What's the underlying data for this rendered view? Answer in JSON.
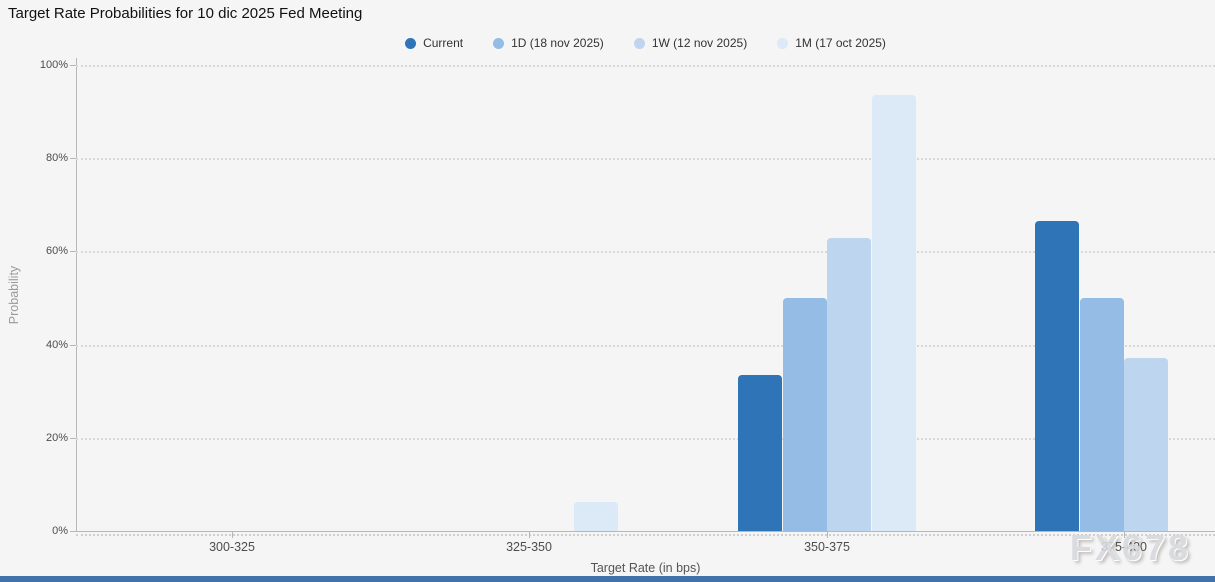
{
  "watermark": {
    "text": "FX678"
  },
  "page": {
    "background": "#f5f5f6",
    "grid_color": "#d9d9d9",
    "axis_color": "#b7b7b7",
    "footer_bar_color": "#4272aa"
  },
  "chart_data": {
    "type": "bar",
    "title": "Target Rate Probabilities for 10 dic 2025 Fed Meeting",
    "xlabel": "Target Rate (in bps)",
    "ylabel": "Probability",
    "categories": [
      "300-325",
      "325-350",
      "350-375",
      "375-400"
    ],
    "y_ticks": [
      "0%",
      "20%",
      "40%",
      "60%",
      "80%",
      "100%"
    ],
    "ylim": [
      0,
      100
    ],
    "grid": "horizontal-dotted",
    "legend_position": "top-center",
    "series": [
      {
        "name": "Current",
        "color": "#2e74b6",
        "values": [
          0,
          0,
          33.5,
          66.5
        ]
      },
      {
        "name": "1D (18 nov 2025)",
        "color": "#94bce4",
        "values": [
          0,
          0,
          50.1,
          49.9
        ]
      },
      {
        "name": "1W (12 nov 2025)",
        "color": "#bdd5ee",
        "values": [
          0,
          0,
          62.8,
          37.2
        ]
      },
      {
        "name": "1M (17 oct 2025)",
        "color": "#dce9f6",
        "values": [
          0,
          6.2,
          93.6,
          0
        ]
      }
    ]
  }
}
